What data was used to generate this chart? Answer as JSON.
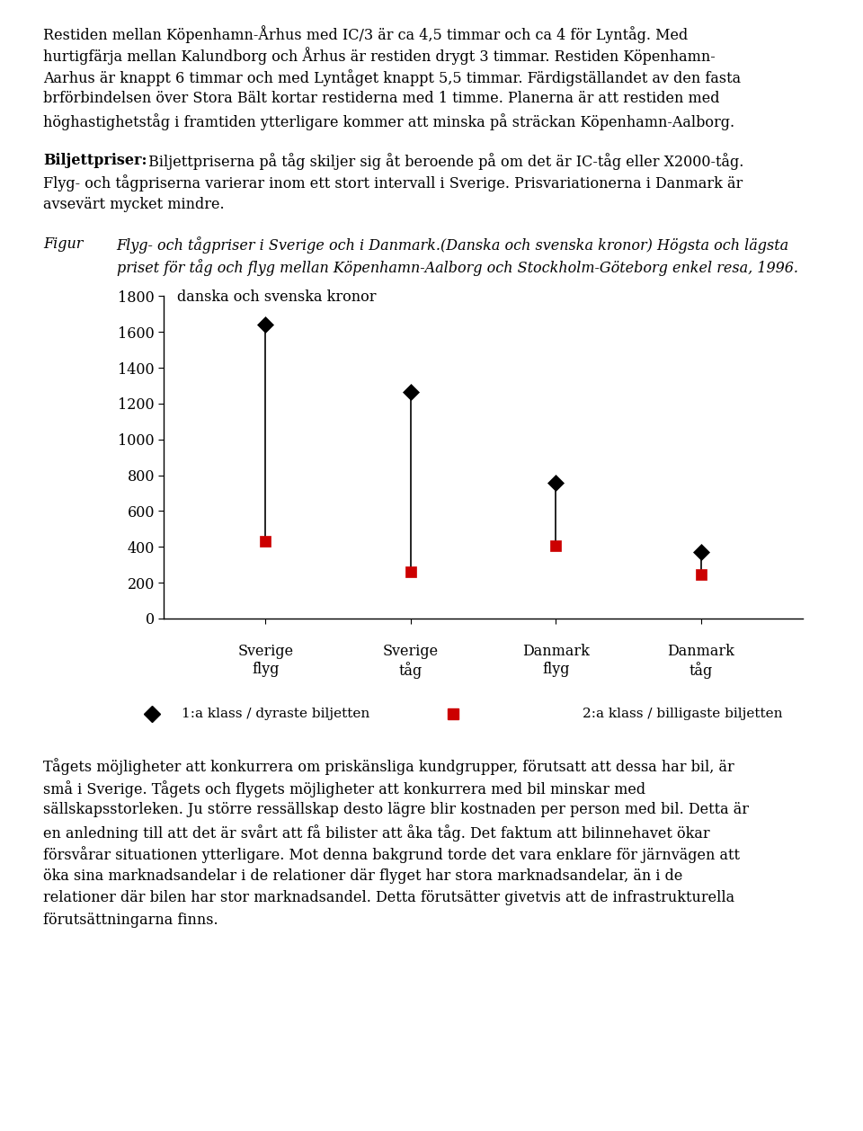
{
  "categories_line1": [
    "Sverige",
    "Sverige",
    "Danmark",
    "Danmark"
  ],
  "categories_line2": [
    "flyg",
    "tåg",
    "flyg",
    "tåg"
  ],
  "high_values": [
    1640,
    1265,
    760,
    370
  ],
  "low_values": [
    430,
    260,
    405,
    245
  ],
  "high_color": "#000000",
  "low_color": "#cc0000",
  "ylim": [
    0,
    1800
  ],
  "yticks": [
    0,
    200,
    400,
    600,
    800,
    1000,
    1200,
    1400,
    1600,
    1800
  ],
  "ylabel": "danska och svenska kronor",
  "legend_1": "1:a klass / dyraste biljetten",
  "legend_2": "2:a klass / billigaste biljetten",
  "para1_line1": "Restiden mellan Köpenhamn-Århus med IC/3 är ca 4,5 timmar och ca 4 för Lyntåg. Med",
  "para1_line2": "hurtigfärja mellan Kalundborg och Århus är restiden drygt 3 timmar. Restiden Köpenhamn-",
  "para1_line3": "Aarhus är knappt 6 timmar och med Lyntåget knappt 5,5 timmar. Färdigställandet av den fasta",
  "para1_line4": "brförbindelsen över Stora Bält kortar restiderna med 1 timme. Planerna är att restiden med",
  "para1_line5": "höghastighetståg i framtiden ytterligare kommer att minska på sträckan Köpenhamn-Aalborg.",
  "para2_bold": "Biljettpriser:",
  "para2_rest_line1": " Biljettpriserna på tåg skiljer sig åt beroende på om det är IC-tåg eller X2000-tåg.",
  "para2_line2": "Flyg- och tågpriserna varierar inom ett stort intervall i Sverige. Prisvariationerna i Danmark är",
  "para2_line3": "avsevärt mycket mindre.",
  "fig_label": "Figur",
  "fig_caption_line1": "Flyg- och tågpriser i Sverige och i Danmark.(Danska och svenska kronor) Högsta och lägsta",
  "fig_caption_line2": "priset för tåg och flyg mellan Köpenhamn-Aalborg och Stockholm-Göteborg enkel resa, 1996.",
  "para3_line1": "Tågets möjligheter att konkurrera om priskänsliga kundgrupper, förutsatt att dessa har bil, är",
  "para3_line2": "små i Sverige. Tågets och flygets möjligheter att konkurrera med bil minskar med",
  "para3_line3": "sällskapsstorleken. Ju större ressällskap desto lägre blir kostnaden per person med bil. Detta är",
  "para3_line4": "en anledning till att det är svårt att få bilister att åka tåg. Det faktum att bilinnehavet ökar",
  "para3_line5": "försvårar situationen ytterligare. Mot denna bakgrund torde det vara enklare för järnvägen att",
  "para3_line6": "öka sina marknadsandelar i de relationer där flyget har stora marknadsandelar, än i de",
  "para3_line7": "relationer där bilen har stor marknadsandel. Detta förutsätter givetvis att de infrastrukturella",
  "para3_line8": "förutsättningarna finns."
}
